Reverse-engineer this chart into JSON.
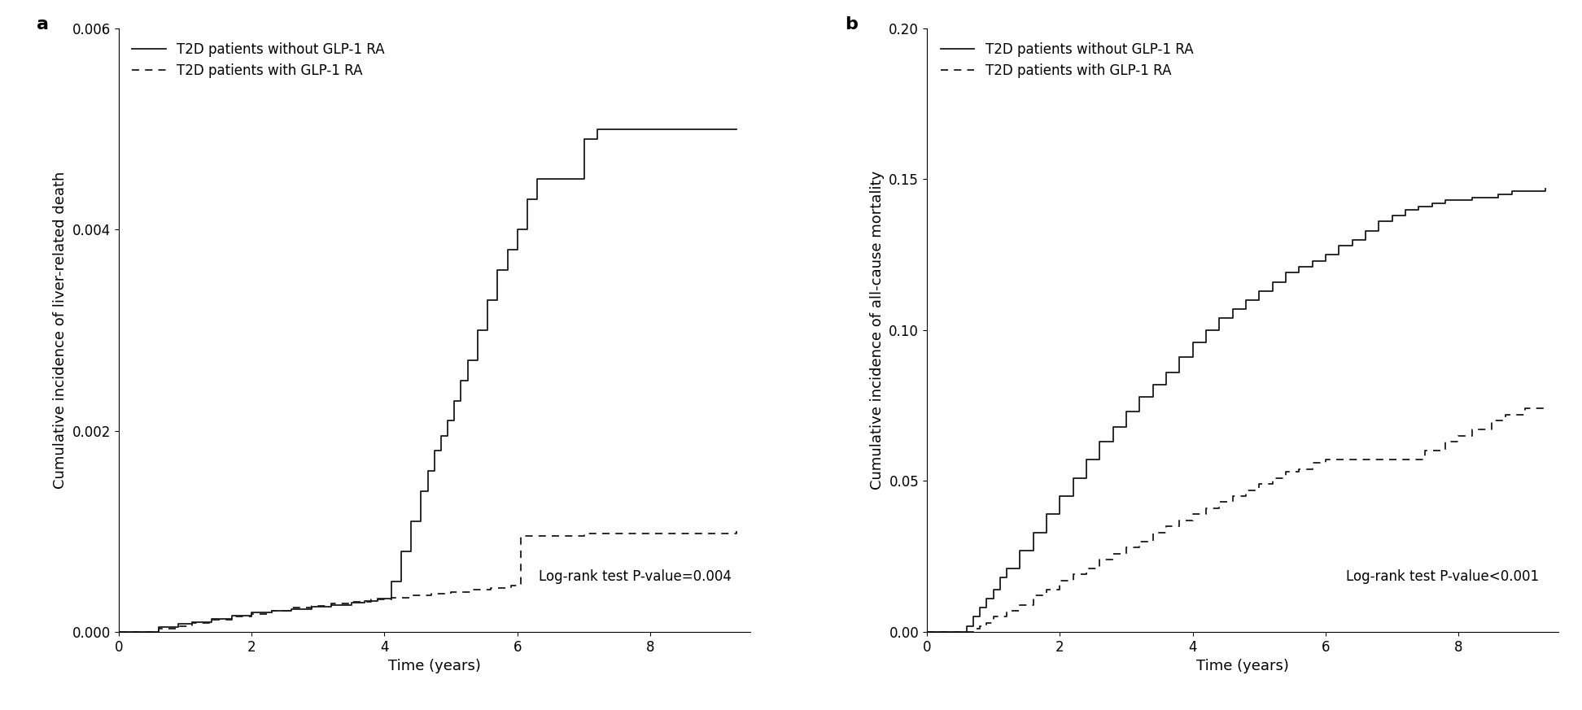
{
  "panel_a": {
    "label": "a",
    "ylabel": "Cumulative incidence of liver-related death",
    "xlabel": "Time (years)",
    "ylim": [
      0,
      0.006
    ],
    "xlim": [
      0,
      9.5
    ],
    "yticks": [
      0.0,
      0.002,
      0.004,
      0.006
    ],
    "xticks": [
      0,
      2,
      4,
      6,
      8
    ],
    "pvalue_text": "Log-rank test P-value=0.004",
    "legend_labels": [
      "T2D patients without GLP-1 RA",
      "T2D patients with GLP-1 RA"
    ],
    "solid_times": [
      0,
      0.6,
      0.9,
      1.1,
      1.4,
      1.7,
      2.0,
      2.3,
      2.6,
      2.9,
      3.2,
      3.5,
      3.7,
      3.9,
      4.1,
      4.25,
      4.4,
      4.55,
      4.65,
      4.75,
      4.85,
      4.95,
      5.05,
      5.15,
      5.25,
      5.4,
      5.55,
      5.7,
      5.85,
      6.0,
      6.15,
      6.3,
      7.0,
      7.2,
      8.5,
      9.3
    ],
    "solid_vals": [
      0,
      5e-05,
      8e-05,
      0.0001,
      0.00013,
      0.00016,
      0.00019,
      0.00021,
      0.00023,
      0.00025,
      0.00027,
      0.00029,
      0.00031,
      0.00033,
      0.0005,
      0.0008,
      0.0011,
      0.0014,
      0.0016,
      0.0018,
      0.00195,
      0.0021,
      0.0023,
      0.0025,
      0.0027,
      0.003,
      0.0033,
      0.0036,
      0.0038,
      0.004,
      0.0043,
      0.0045,
      0.0049,
      0.005,
      0.005,
      0.005
    ],
    "dashed_times": [
      0,
      0.6,
      0.9,
      1.1,
      1.4,
      1.7,
      2.0,
      2.3,
      2.6,
      2.9,
      3.2,
      3.5,
      3.8,
      4.1,
      4.4,
      4.7,
      5.0,
      5.3,
      5.6,
      5.9,
      6.0,
      6.05,
      7.0,
      9.3
    ],
    "dashed_vals": [
      0,
      3e-05,
      6e-05,
      9e-05,
      0.00012,
      0.00015,
      0.00018,
      0.00021,
      0.00024,
      0.00026,
      0.00028,
      0.0003,
      0.00032,
      0.00034,
      0.00036,
      0.00038,
      0.0004,
      0.00042,
      0.00044,
      0.00046,
      0.00048,
      0.00095,
      0.00098,
      0.001
    ]
  },
  "panel_b": {
    "label": "b",
    "ylabel": "Cumulative incidence of all-cause mortality",
    "xlabel": "Time (years)",
    "ylim": [
      0,
      0.2
    ],
    "xlim": [
      0,
      9.5
    ],
    "yticks": [
      0.0,
      0.05,
      0.1,
      0.15,
      0.2
    ],
    "xticks": [
      0,
      2,
      4,
      6,
      8
    ],
    "pvalue_text": "Log-rank test P-value<0.001",
    "legend_labels": [
      "T2D patients without GLP-1 RA",
      "T2D patients with GLP-1 RA"
    ],
    "solid_times": [
      0,
      0.5,
      0.6,
      0.7,
      0.8,
      0.9,
      1.0,
      1.1,
      1.2,
      1.4,
      1.6,
      1.8,
      2.0,
      2.2,
      2.4,
      2.6,
      2.8,
      3.0,
      3.2,
      3.4,
      3.6,
      3.8,
      4.0,
      4.2,
      4.4,
      4.6,
      4.8,
      5.0,
      5.2,
      5.4,
      5.6,
      5.8,
      6.0,
      6.2,
      6.4,
      6.6,
      6.8,
      7.0,
      7.2,
      7.4,
      7.6,
      7.8,
      8.0,
      8.2,
      8.4,
      8.6,
      8.8,
      9.0,
      9.3
    ],
    "solid_vals": [
      0,
      0.0,
      0.002,
      0.005,
      0.008,
      0.011,
      0.014,
      0.018,
      0.021,
      0.027,
      0.033,
      0.039,
      0.045,
      0.051,
      0.057,
      0.063,
      0.068,
      0.073,
      0.078,
      0.082,
      0.086,
      0.091,
      0.096,
      0.1,
      0.104,
      0.107,
      0.11,
      0.113,
      0.116,
      0.119,
      0.121,
      0.123,
      0.125,
      0.128,
      0.13,
      0.133,
      0.136,
      0.138,
      0.14,
      0.141,
      0.142,
      0.143,
      0.143,
      0.144,
      0.144,
      0.145,
      0.146,
      0.146,
      0.147
    ],
    "dashed_times": [
      0,
      0.5,
      0.6,
      0.7,
      0.8,
      0.9,
      1.0,
      1.2,
      1.4,
      1.6,
      1.8,
      2.0,
      2.2,
      2.4,
      2.6,
      2.8,
      3.0,
      3.2,
      3.4,
      3.6,
      3.8,
      4.0,
      4.2,
      4.4,
      4.6,
      4.8,
      5.0,
      5.2,
      5.4,
      5.6,
      5.8,
      6.0,
      6.2,
      6.4,
      6.6,
      6.8,
      7.0,
      7.2,
      7.5,
      7.8,
      8.0,
      8.2,
      8.5,
      8.7,
      9.0,
      9.3
    ],
    "dashed_vals": [
      0,
      0.0,
      0.0,
      0.001,
      0.002,
      0.003,
      0.005,
      0.007,
      0.009,
      0.012,
      0.014,
      0.017,
      0.019,
      0.021,
      0.024,
      0.026,
      0.028,
      0.03,
      0.033,
      0.035,
      0.037,
      0.039,
      0.041,
      0.043,
      0.045,
      0.047,
      0.049,
      0.051,
      0.053,
      0.054,
      0.056,
      0.057,
      0.046,
      0.049,
      0.051,
      0.053,
      0.055,
      0.057,
      0.06,
      0.063,
      0.065,
      0.067,
      0.07,
      0.072,
      0.074,
      0.074
    ]
  },
  "line_color": "#1a1a1a",
  "bg_color": "#ffffff",
  "font_size": 13,
  "legend_font_size": 12,
  "tick_font_size": 12
}
